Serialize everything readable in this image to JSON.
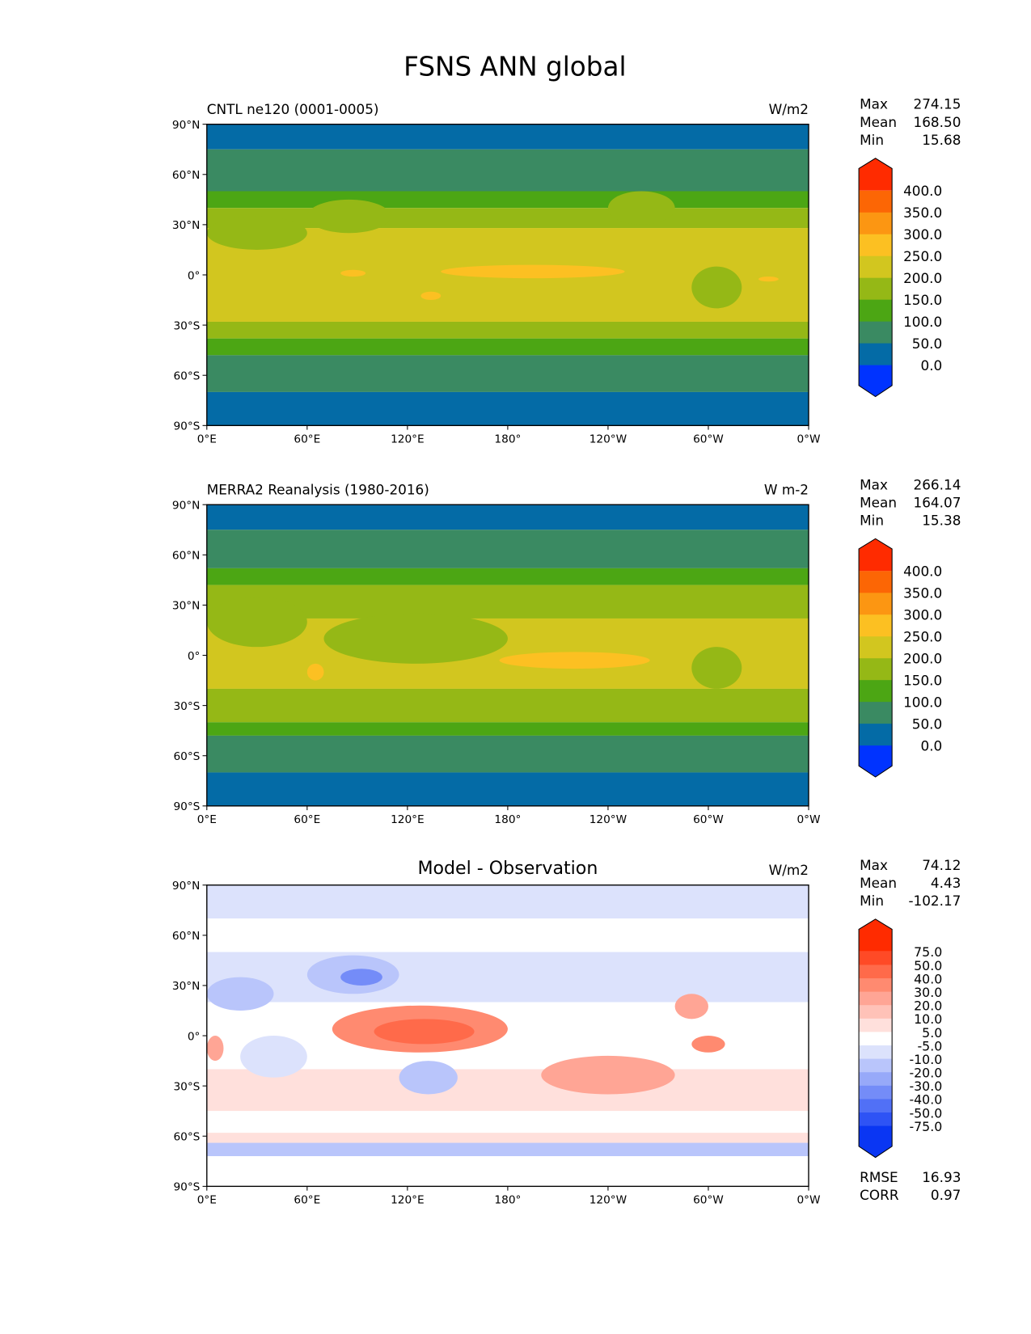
{
  "title": "FSNS ANN global",
  "lon_ticks": [
    "0°E",
    "60°E",
    "120°E",
    "180°",
    "120°W",
    "60°W",
    "0°W"
  ],
  "lat_ticks": [
    "90°N",
    "60°N",
    "30°N",
    "0°",
    "30°S",
    "60°S",
    "90°S"
  ],
  "stat_labels": {
    "max": "Max",
    "mean": "Mean",
    "min": "Min",
    "rmse": "RMSE",
    "corr": "CORR"
  },
  "chart_data": [
    {
      "type": "heatmap",
      "title_left": "CNTL ne120 (0001-0005)",
      "units": "W/m2",
      "stats": {
        "max": "274.15",
        "mean": "168.50",
        "min": "15.68"
      },
      "colorbar": {
        "labels": [
          "400.0",
          "350.0",
          "300.0",
          "250.0",
          "200.0",
          "150.0",
          "100.0",
          "50.0",
          "0.0"
        ],
        "colors": [
          "#ff2b00",
          "#fc6605",
          "#fc9612",
          "#fcc022",
          "#d2c61f",
          "#95b816",
          "#4ca614",
          "#3a8a62",
          "#046ba6",
          "#0033ff"
        ]
      },
      "zonal_bands": [
        [
          90,
          75,
          8
        ],
        [
          75,
          50,
          7
        ],
        [
          50,
          40,
          6
        ],
        [
          40,
          28,
          5
        ],
        [
          28,
          -28,
          4
        ],
        [
          -28,
          -38,
          5
        ],
        [
          -38,
          -48,
          6
        ],
        [
          -48,
          -70,
          7
        ],
        [
          -70,
          -90,
          8
        ]
      ],
      "patches": [
        [
          140,
          250,
          -2,
          6,
          3
        ],
        [
          80,
          95,
          -1,
          3,
          3
        ],
        [
          128,
          140,
          -15,
          -10,
          3
        ],
        [
          330,
          342,
          -4,
          -1,
          3
        ],
        [
          0,
          60,
          15,
          35,
          5
        ],
        [
          60,
          110,
          25,
          45,
          5
        ],
        [
          290,
          320,
          -20,
          5,
          5
        ],
        [
          240,
          280,
          30,
          50,
          5
        ]
      ]
    },
    {
      "type": "heatmap",
      "title_left": "MERRA2 Reanalysis (1980-2016)",
      "units": "W m-2",
      "stats": {
        "max": "266.14",
        "mean": "164.07",
        "min": "15.38"
      },
      "colorbar": {
        "labels": [
          "400.0",
          "350.0",
          "300.0",
          "250.0",
          "200.0",
          "150.0",
          "100.0",
          "50.0",
          "0.0"
        ],
        "colors": [
          "#ff2b00",
          "#fc6605",
          "#fc9612",
          "#fcc022",
          "#d2c61f",
          "#95b816",
          "#4ca614",
          "#3a8a62",
          "#046ba6",
          "#0033ff"
        ]
      },
      "zonal_bands": [
        [
          90,
          75,
          8
        ],
        [
          75,
          52,
          7
        ],
        [
          52,
          42,
          6
        ],
        [
          42,
          22,
          5
        ],
        [
          22,
          -20,
          4
        ],
        [
          -20,
          -40,
          5
        ],
        [
          -40,
          -48,
          6
        ],
        [
          -48,
          -70,
          7
        ],
        [
          -70,
          -90,
          8
        ]
      ],
      "patches": [
        [
          175,
          265,
          -8,
          2,
          3
        ],
        [
          0,
          60,
          5,
          35,
          5
        ],
        [
          70,
          180,
          -5,
          25,
          5
        ],
        [
          290,
          320,
          -20,
          5,
          5
        ],
        [
          60,
          70,
          -15,
          -5,
          3
        ]
      ]
    },
    {
      "type": "heatmap",
      "title_center": "Model - Observation",
      "units": "W/m2",
      "stats": {
        "max": "74.12",
        "mean": "4.43",
        "min": "-102.17"
      },
      "error_stats": {
        "rmse": "16.93",
        "corr": "0.97"
      },
      "colorbar": {
        "labels": [
          "75.0",
          "50.0",
          "40.0",
          "30.0",
          "20.0",
          "10.0",
          "5.0",
          "-5.0",
          "-10.0",
          "-20.0",
          "-30.0",
          "-40.0",
          "-50.0",
          "-75.0"
        ],
        "colors": [
          "#ff2b00",
          "#ff4a26",
          "#ff6a4a",
          "#ff8a70",
          "#ffa595",
          "#ffc2b8",
          "#ffe0dc",
          "#ffffff",
          "#dce2fc",
          "#b9c5fb",
          "#97a9f9",
          "#748cf8",
          "#5170f6",
          "#2e53f5",
          "#0a36f3"
        ]
      },
      "zonal_bands": [
        [
          90,
          70,
          8
        ],
        [
          70,
          50,
          7
        ],
        [
          50,
          20,
          8
        ],
        [
          20,
          -20,
          7
        ],
        [
          -20,
          -45,
          6
        ],
        [
          -45,
          -58,
          7
        ],
        [
          -58,
          -64,
          6
        ],
        [
          -64,
          -72,
          9
        ],
        [
          -72,
          -90,
          7
        ]
      ],
      "patches": [
        [
          75,
          180,
          -10,
          18,
          3
        ],
        [
          100,
          160,
          -5,
          10,
          2
        ],
        [
          200,
          280,
          -35,
          -12,
          4
        ],
        [
          60,
          115,
          25,
          48,
          9
        ],
        [
          80,
          105,
          30,
          40,
          11
        ],
        [
          0,
          40,
          15,
          35,
          9
        ],
        [
          280,
          300,
          10,
          25,
          4
        ],
        [
          290,
          310,
          -10,
          0,
          3
        ],
        [
          115,
          150,
          -35,
          -15,
          9
        ],
        [
          0,
          10,
          -15,
          0,
          4
        ],
        [
          20,
          60,
          -25,
          0,
          8
        ]
      ]
    }
  ]
}
